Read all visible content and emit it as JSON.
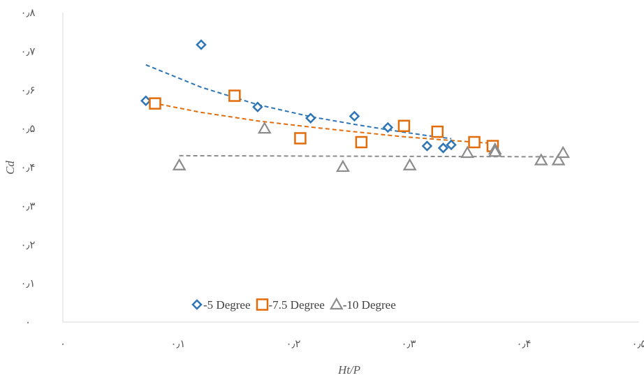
{
  "chart_data": {
    "type": "scatter",
    "xlabel": "Ht/P",
    "ylabel": "Cd",
    "xlim": [
      0,
      0.5
    ],
    "ylim": [
      0,
      0.8
    ],
    "x_ticks": [
      0,
      0.1,
      0.2,
      0.3,
      0.4,
      0.5
    ],
    "x_tick_labels": [
      "۰",
      "۰٫۱",
      "۰٫۲",
      "۰٫۳",
      "۰٫۴",
      "۰٫۵"
    ],
    "y_ticks": [
      0,
      0.1,
      0.2,
      0.3,
      0.4,
      0.5,
      0.6,
      0.7,
      0.8
    ],
    "y_tick_labels": [
      "۰",
      "۰٫۱",
      "۰٫۲",
      "۰٫۳",
      "۰٫۴",
      "۰٫۵",
      "۰٫۶",
      "۰٫۷",
      "۰٫۸"
    ],
    "grid": false,
    "legend_position": "bottom-center",
    "series": [
      {
        "name": "-5 Degree",
        "marker": "diamond",
        "color": "#2E75B6",
        "points": [
          [
            0.072,
            0.572
          ],
          [
            0.12,
            0.717
          ],
          [
            0.169,
            0.556
          ],
          [
            0.215,
            0.527
          ],
          [
            0.253,
            0.532
          ],
          [
            0.282,
            0.503
          ],
          [
            0.316,
            0.455
          ],
          [
            0.33,
            0.45
          ],
          [
            0.337,
            0.458
          ]
        ],
        "trendline": {
          "type": "power",
          "x_range": [
            0.072,
            0.337
          ],
          "points": [
            [
              0.072,
              0.665
            ],
            [
              0.12,
              0.607
            ],
            [
              0.169,
              0.562
            ],
            [
              0.215,
              0.531
            ],
            [
              0.253,
              0.511
            ],
            [
              0.282,
              0.497
            ],
            [
              0.316,
              0.482
            ],
            [
              0.337,
              0.474
            ]
          ]
        }
      },
      {
        "name": "-7.5 Degree",
        "marker": "square",
        "color": "#E36C0A",
        "points": [
          [
            0.08,
            0.565
          ],
          [
            0.149,
            0.585
          ],
          [
            0.206,
            0.475
          ],
          [
            0.259,
            0.465
          ],
          [
            0.296,
            0.507
          ],
          [
            0.325,
            0.492
          ],
          [
            0.357,
            0.465
          ],
          [
            0.373,
            0.455
          ]
        ],
        "trendline": {
          "type": "power",
          "x_range": [
            0.072,
            0.373
          ],
          "points": [
            [
              0.072,
              0.57
            ],
            [
              0.12,
              0.542
            ],
            [
              0.169,
              0.52
            ],
            [
              0.215,
              0.504
            ],
            [
              0.253,
              0.492
            ],
            [
              0.296,
              0.479
            ],
            [
              0.325,
              0.472
            ],
            [
              0.357,
              0.465
            ],
            [
              0.373,
              0.462
            ]
          ]
        }
      },
      {
        "name": "-10 Degree",
        "marker": "triangle",
        "color": "#8C8C8C",
        "points": [
          [
            0.101,
            0.405
          ],
          [
            0.175,
            0.5
          ],
          [
            0.243,
            0.401
          ],
          [
            0.301,
            0.405
          ],
          [
            0.351,
            0.437
          ],
          [
            0.375,
            0.446
          ],
          [
            0.375,
            0.44
          ],
          [
            0.415,
            0.418
          ],
          [
            0.43,
            0.418
          ],
          [
            0.434,
            0.437
          ]
        ],
        "trendline": {
          "type": "linear",
          "x_range": [
            0.101,
            0.434
          ],
          "points": [
            [
              0.101,
              0.43
            ],
            [
              0.434,
              0.427
            ]
          ]
        }
      }
    ]
  }
}
